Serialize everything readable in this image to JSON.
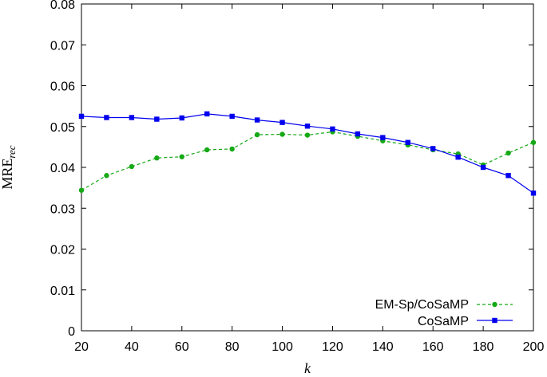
{
  "chart_data": {
    "type": "line",
    "xlabel": "k",
    "ylabel_main": "MRE",
    "ylabel_sub": "rec",
    "xlim": [
      20,
      200
    ],
    "ylim": [
      0,
      0.08
    ],
    "xticks": [
      "20",
      "40",
      "60",
      "80",
      "100",
      "120",
      "140",
      "160",
      "180",
      "200"
    ],
    "yticks": [
      "0",
      "0.01",
      "0.02",
      "0.03",
      "0.04",
      "0.05",
      "0.06",
      "0.07",
      "0.08"
    ],
    "grid": false,
    "legend_position": "bottom-right",
    "x": [
      20,
      30,
      40,
      50,
      60,
      70,
      80,
      90,
      100,
      110,
      120,
      130,
      140,
      150,
      160,
      170,
      180,
      190,
      200
    ],
    "series": [
      {
        "name": "EM-Sp/CoSaMP",
        "color": "#16a916",
        "style": "dashed",
        "marker": "circle",
        "values": [
          0.0344,
          0.038,
          0.0402,
          0.0423,
          0.0426,
          0.0443,
          0.0445,
          0.048,
          0.0481,
          0.0479,
          0.0487,
          0.0476,
          0.0465,
          0.0455,
          0.0443,
          0.0433,
          0.0406,
          0.0435,
          0.0461
        ]
      },
      {
        "name": "CoSaMP",
        "color": "#0000ee",
        "style": "solid",
        "marker": "square",
        "values": [
          0.0525,
          0.0522,
          0.0522,
          0.0518,
          0.0521,
          0.0531,
          0.0525,
          0.0516,
          0.051,
          0.0501,
          0.0494,
          0.0482,
          0.0473,
          0.0461,
          0.0446,
          0.0425,
          0.04,
          0.038,
          0.0337
        ]
      }
    ]
  }
}
